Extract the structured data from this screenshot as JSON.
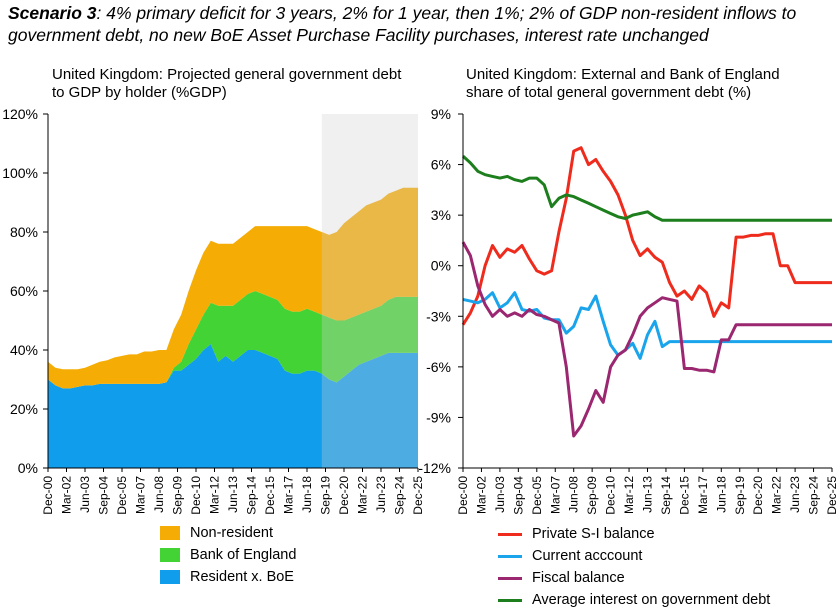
{
  "header": {
    "title_bold": "Scenario 3",
    "title_rest": ": 4% primary deficit for 3 years, 2% for 1 year, then 1%; 2% of GDP non-resident inflows to government debt, no new BoE Asset Purchase Facility purchases, interest rate unchanged"
  },
  "chart_data": [
    {
      "type": "area",
      "stacked": true,
      "title": "United Kingdom: Projected general government debt to GDP by holder (%GDP)",
      "x": [
        "Dec-00",
        "Jun-01",
        "Dec-01",
        "Jun-02",
        "Dec-02",
        "Jun-03",
        "Dec-03",
        "Jun-04",
        "Dec-04",
        "Jun-05",
        "Dec-05",
        "Jun-06",
        "Dec-06",
        "Jun-07",
        "Dec-07",
        "Jun-08",
        "Dec-08",
        "Jun-09",
        "Dec-09",
        "Jun-10",
        "Dec-10",
        "Jun-11",
        "Dec-11",
        "Jun-12",
        "Dec-12",
        "Jun-13",
        "Dec-13",
        "Jun-14",
        "Dec-14",
        "Jun-15",
        "Dec-15",
        "Jun-16",
        "Dec-16",
        "Jun-17",
        "Dec-17",
        "Jun-18",
        "Dec-18",
        "Jun-19",
        "Dec-19",
        "Jun-20",
        "Dec-20",
        "Jun-21",
        "Dec-21",
        "Jun-22",
        "Dec-22",
        "Jun-23",
        "Dec-23",
        "Jun-24",
        "Dec-24",
        "Jun-25",
        "Dec-25"
      ],
      "xtick_labels": [
        "Dec-00",
        "Mar-02",
        "Jun-03",
        "Sep-04",
        "Dec-05",
        "Mar-07",
        "Jun-08",
        "Sep-09",
        "Dec-10",
        "Mar-12",
        "Jun-13",
        "Sep-14",
        "Dec-15",
        "Mar-17",
        "Jun-18",
        "Sep-19",
        "Dec-20",
        "Mar-22",
        "Jun-23",
        "Sep-24",
        "Dec-25"
      ],
      "ylim": [
        0,
        120
      ],
      "yticks": [
        "0%",
        "20%",
        "40%",
        "60%",
        "80%",
        "100%",
        "120%"
      ],
      "projection_shade_from": "Jun-19",
      "series": [
        {
          "name": "Resident x. BoE",
          "color": "#0f9dec",
          "values": [
            30,
            28,
            27,
            27,
            27.5,
            28,
            28,
            28.5,
            28.5,
            28.5,
            28.5,
            28.5,
            28.5,
            28.5,
            28.5,
            28.5,
            29,
            33,
            33,
            35,
            37,
            40,
            42,
            36,
            38,
            36,
            38,
            40,
            40,
            39,
            38,
            37,
            33,
            32,
            32,
            33,
            33,
            32,
            30,
            29,
            31,
            33,
            35,
            36,
            37,
            38,
            39,
            39,
            39,
            39,
            39
          ]
        },
        {
          "name": "Bank of England",
          "color": "#44d335",
          "values": [
            0,
            0,
            0,
            0,
            0,
            0,
            0,
            0,
            0,
            0,
            0,
            0,
            0,
            0,
            0,
            0,
            0,
            1,
            3,
            7,
            10,
            12,
            14,
            19,
            17,
            19,
            19,
            19,
            20,
            20,
            20,
            20,
            21,
            21,
            21,
            21,
            20,
            20,
            21,
            21,
            19,
            18,
            17,
            17,
            17,
            17,
            18,
            19,
            19,
            19,
            19
          ]
        },
        {
          "name": "Non-resident",
          "color": "#f5ad06",
          "values": [
            6,
            6,
            6.5,
            6.5,
            6,
            6,
            7,
            7.5,
            8,
            9,
            9.5,
            10,
            10,
            11,
            11,
            11.5,
            11,
            13,
            16,
            18,
            20,
            21,
            21,
            21,
            21,
            21,
            21,
            21,
            22,
            23,
            24,
            25,
            28,
            29,
            29,
            28,
            28,
            28,
            28,
            30,
            33,
            34,
            35,
            36,
            36,
            36,
            36,
            36,
            37,
            37,
            37
          ]
        }
      ]
    },
    {
      "type": "line",
      "title": "United Kingdom: External and Bank of England share of total general government debt (%)",
      "x": [
        "Dec-00",
        "Jun-01",
        "Dec-01",
        "Jun-02",
        "Dec-02",
        "Jun-03",
        "Dec-03",
        "Jun-04",
        "Dec-04",
        "Jun-05",
        "Dec-05",
        "Jun-06",
        "Dec-06",
        "Jun-07",
        "Dec-07",
        "Jun-08",
        "Dec-08",
        "Jun-09",
        "Dec-09",
        "Jun-10",
        "Dec-10",
        "Jun-11",
        "Dec-11",
        "Jun-12",
        "Dec-12",
        "Jun-13",
        "Dec-13",
        "Jun-14",
        "Dec-14",
        "Jun-15",
        "Dec-15",
        "Jun-16",
        "Dec-16",
        "Jun-17",
        "Dec-17",
        "Jun-18",
        "Dec-18",
        "Jun-19",
        "Dec-19",
        "Jun-20",
        "Dec-20",
        "Jun-21",
        "Dec-21",
        "Jun-22",
        "Dec-22",
        "Jun-23",
        "Dec-23",
        "Jun-24",
        "Dec-24",
        "Jun-25",
        "Dec-25"
      ],
      "xtick_labels": [
        "Dec-00",
        "Mar-02",
        "Jun-03",
        "Sep-04",
        "Dec-05",
        "Mar-07",
        "Jun-08",
        "Sep-09",
        "Dec-10",
        "Mar-12",
        "Jun-13",
        "Sep-14",
        "Dec-15",
        "Mar-17",
        "Jun-18",
        "Sep-19",
        "Dec-20",
        "Mar-22",
        "Jun-23",
        "Sep-24",
        "Dec-25"
      ],
      "ylim": [
        -12,
        9
      ],
      "yticks": [
        "-12%",
        "-9%",
        "-6%",
        "-3%",
        "0%",
        "3%",
        "6%",
        "9%"
      ],
      "projection_shade_from": "Sep-19",
      "series": [
        {
          "name": "Private S-I balance",
          "color": "#ee2b1c",
          "values": [
            -3.5,
            -2.8,
            -1.8,
            0,
            1.2,
            0.5,
            1,
            0.8,
            1.2,
            0.4,
            -0.3,
            -0.5,
            -0.3,
            2,
            4,
            6.8,
            7,
            6,
            6.3,
            5.6,
            5,
            4.2,
            3,
            1.5,
            0.6,
            1,
            0.5,
            0.2,
            -1,
            -1.8,
            -1.5,
            -2,
            -1.2,
            -1.6,
            -3,
            -2.2,
            -2.5,
            1.7,
            1.7,
            1.8,
            1.8,
            1.9,
            1.9,
            0,
            0,
            -1,
            -1,
            -1,
            -1,
            -1,
            -1
          ]
        },
        {
          "name": "Current acccount",
          "color": "#19a4ec",
          "values": [
            -2,
            -2.1,
            -2.2,
            -2,
            -1.6,
            -2.5,
            -2.2,
            -1.6,
            -2.6,
            -2.7,
            -2.6,
            -3.1,
            -3.2,
            -3.2,
            -4,
            -3.6,
            -2.5,
            -2.6,
            -1.8,
            -3.3,
            -4.7,
            -5.3,
            -5,
            -4.6,
            -5.5,
            -4.1,
            -3.3,
            -4.8,
            -4.5,
            -4.5,
            -4.5,
            -4.5,
            -4.5,
            -4.5,
            -4.5,
            -4.5,
            -4.5,
            -4.5,
            -4.5,
            -4.5,
            -4.5,
            -4.5,
            -4.5,
            -4.5,
            -4.5,
            -4.5,
            -4.5,
            -4.5,
            -4.5,
            -4.5,
            -4.5
          ]
        },
        {
          "name": "Fiscal balance",
          "color": "#9a2770",
          "values": [
            1.4,
            0.6,
            -1.2,
            -2.3,
            -3,
            -2.6,
            -3,
            -2.8,
            -3,
            -2.6,
            -2.9,
            -3,
            -3.2,
            -3.4,
            -6,
            -10.1,
            -9.5,
            -8.5,
            -7.4,
            -8.1,
            -6,
            -5.3,
            -5,
            -4.1,
            -3,
            -2.5,
            -2.2,
            -1.9,
            -2,
            -2.1,
            -6.1,
            -6.1,
            -6.2,
            -6.2,
            -6.3,
            -4.4,
            -4.4,
            -3.5,
            -3.5,
            -3.5,
            -3.5,
            -3.5,
            -3.5,
            -3.5,
            -3.5,
            -3.5,
            -3.5,
            -3.5,
            -3.5,
            -3.5,
            -3.5
          ]
        },
        {
          "name": "Average interest on government debt",
          "color": "#1c7e1c",
          "values": [
            6.5,
            6.1,
            5.6,
            5.4,
            5.3,
            5.2,
            5.3,
            5.1,
            5,
            5.2,
            5.2,
            4.8,
            3.5,
            4,
            4.2,
            4.1,
            3.9,
            3.7,
            3.5,
            3.3,
            3.1,
            2.9,
            2.8,
            3,
            3.1,
            3.2,
            2.9,
            2.7,
            2.7,
            2.7,
            2.7,
            2.7,
            2.7,
            2.7,
            2.7,
            2.7,
            2.7,
            2.7,
            2.7,
            2.7,
            2.7,
            2.7,
            2.7,
            2.7,
            2.7,
            2.7,
            2.7,
            2.7,
            2.7,
            2.7,
            2.7
          ]
        }
      ]
    }
  ]
}
